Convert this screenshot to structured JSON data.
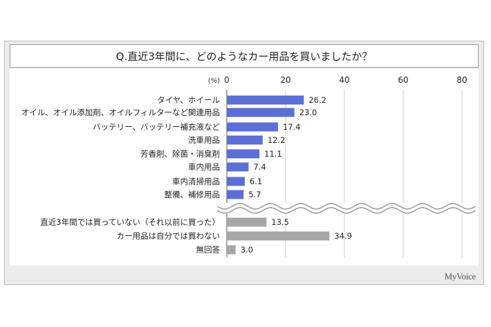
{
  "chart_data": {
    "type": "bar",
    "orientation": "horizontal",
    "title": "Q.直近3年間に、どのようなカー用品を買いましたか？",
    "unit_label": "(%)",
    "xlim": [
      0,
      80
    ],
    "xticks": [
      "0",
      "20",
      "40",
      "60",
      "80"
    ],
    "grid": true,
    "axis_break_after_index": 7,
    "categories": [
      "タイヤ、ホイール",
      "オイル、オイル添加剤、オイルフィルターなど関連用品",
      "バッテリー、バッテリー補充液など",
      "洗車用品",
      "芳香剤、除菌・消臭剤",
      "車内用品",
      "車内清掃用品",
      "整備、補修用品",
      "直近3年間では買っていない（それ以前に買った）",
      "カー用品は自分では買わない",
      "無回答"
    ],
    "values": [
      26.2,
      23.0,
      17.4,
      12.2,
      11.1,
      7.4,
      6.1,
      5.7,
      13.5,
      34.9,
      3.0
    ],
    "value_labels": [
      "26.2",
      "23.0",
      "17.4",
      "12.2",
      "11.1",
      "7.4",
      "6.1",
      "5.7",
      "13.5",
      "34.9",
      "3.0"
    ],
    "colors": {
      "upper_bars": "#5b6fd6",
      "lower_bars": "#a6a6a6"
    }
  },
  "brand": "MyVoice"
}
